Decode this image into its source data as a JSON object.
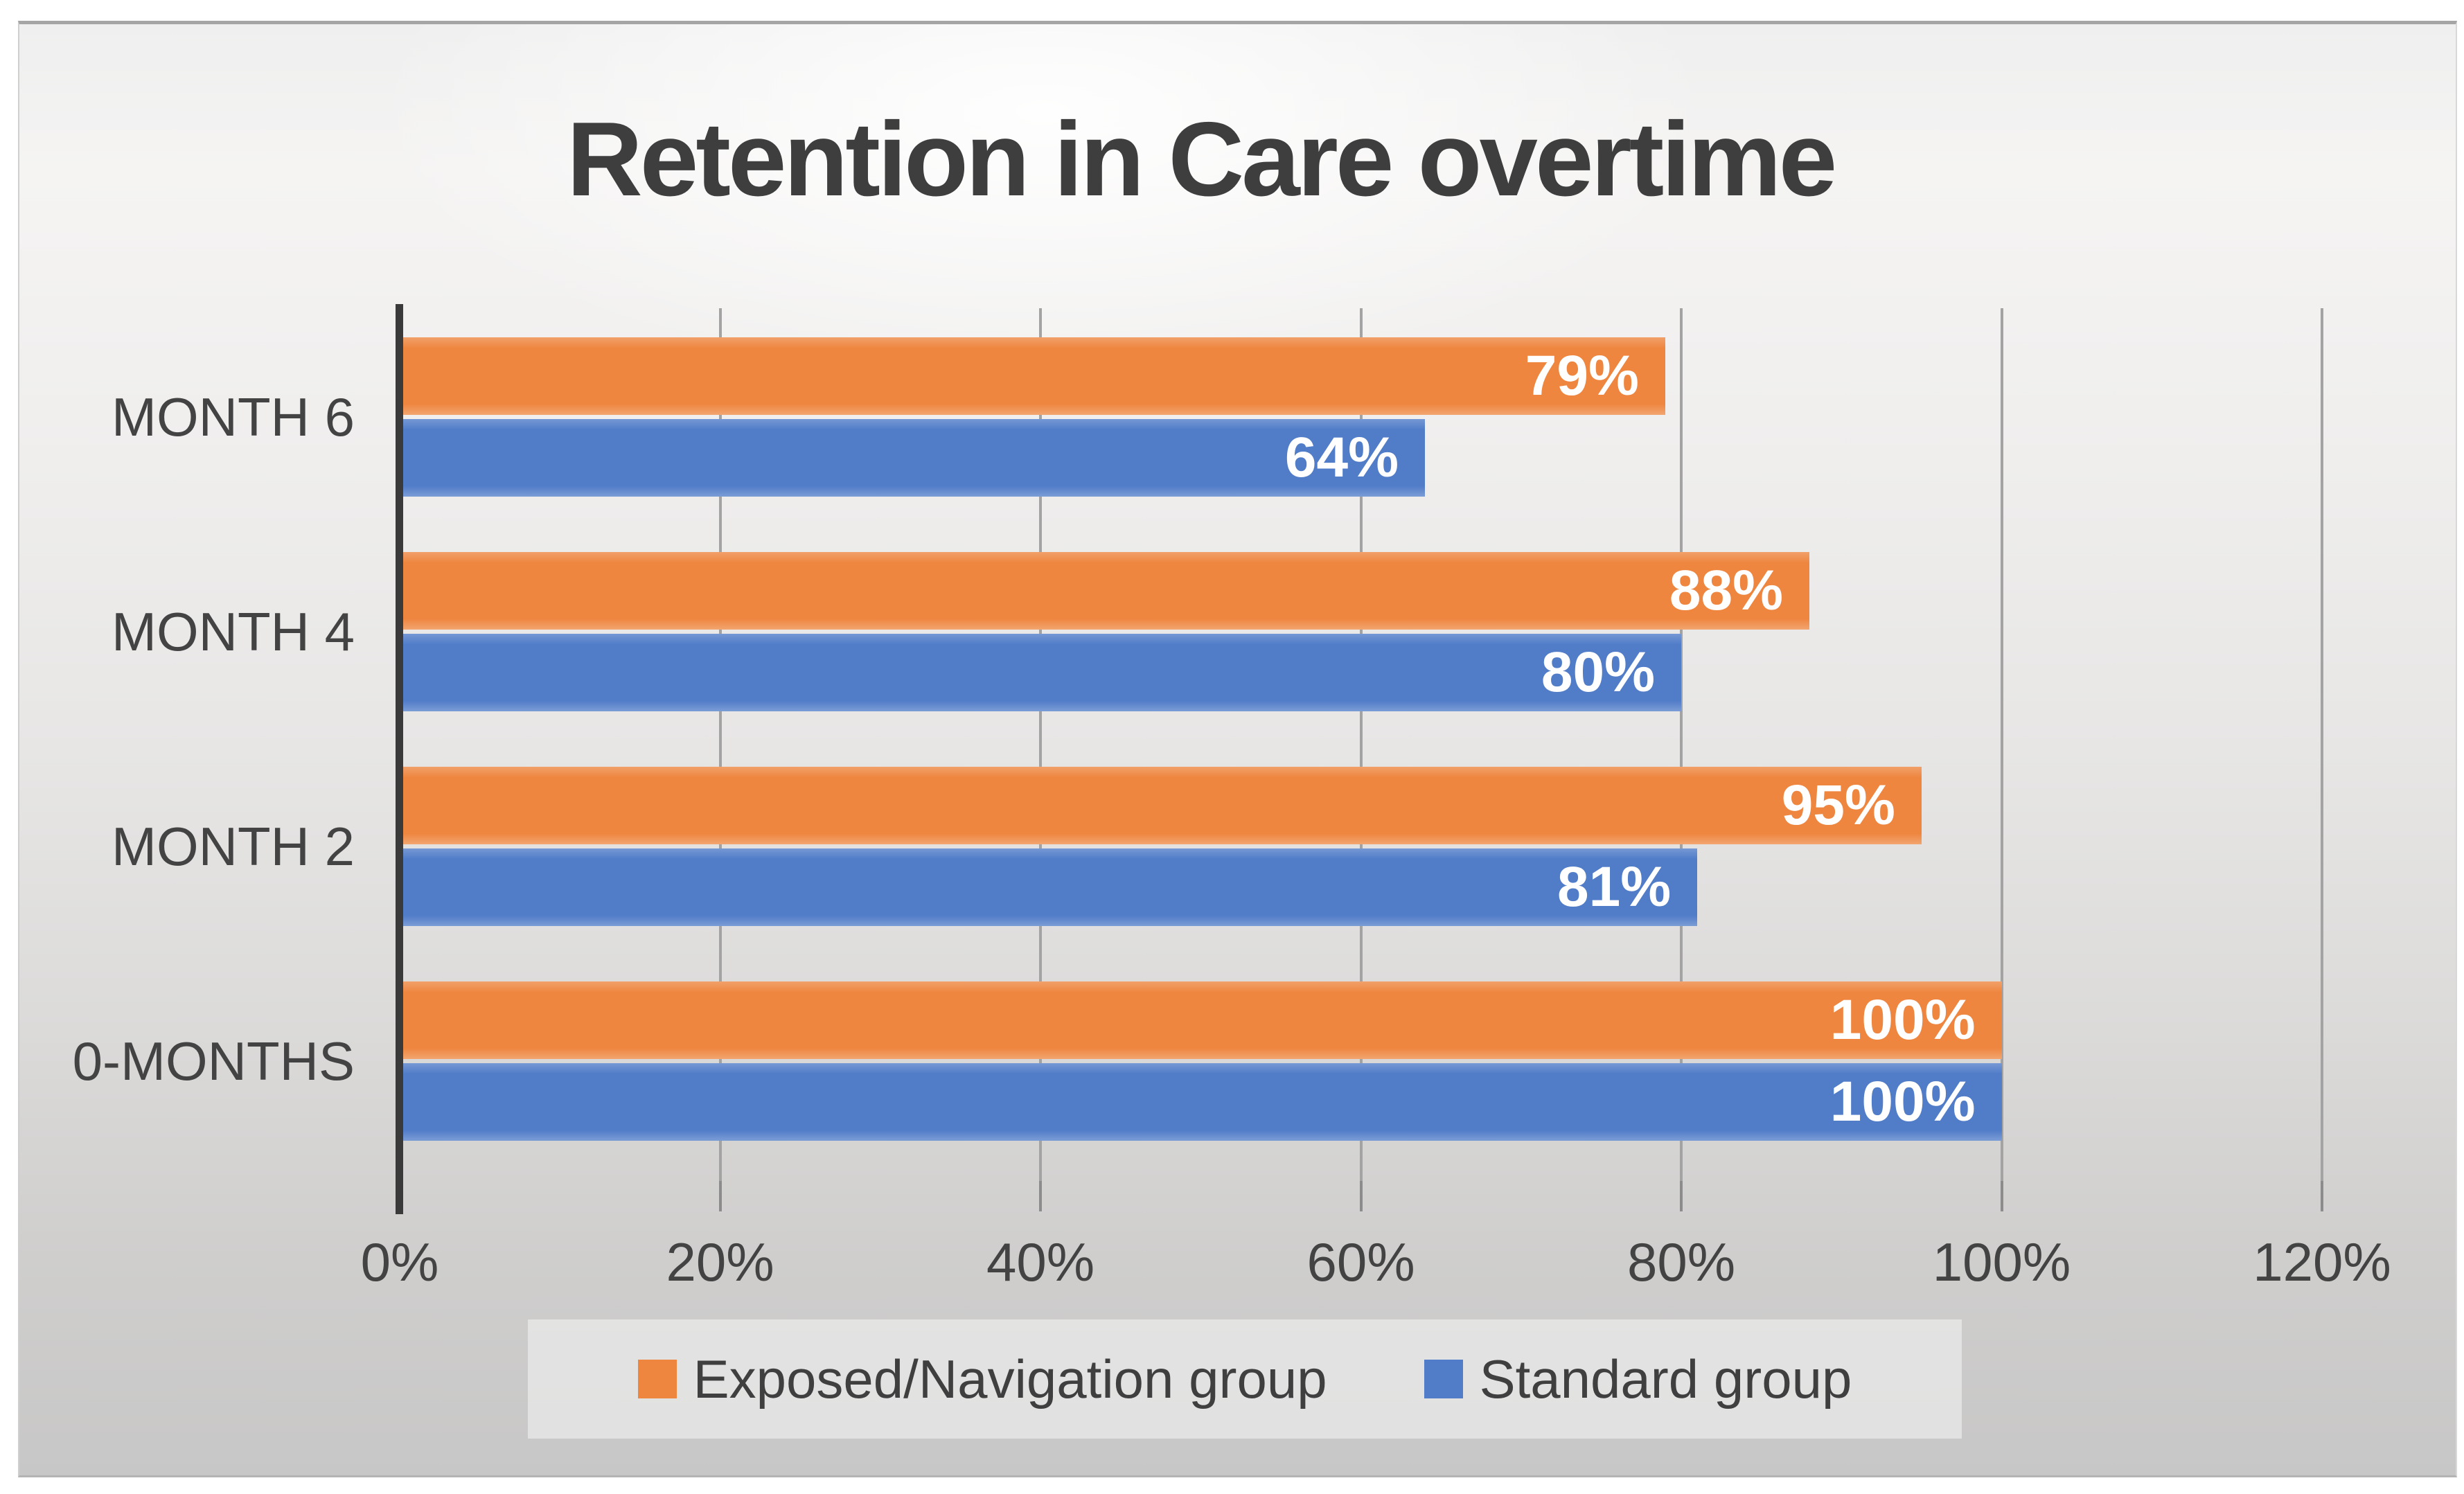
{
  "title": {
    "text": "Retention in Care overtime",
    "color": "#3e3e3e"
  },
  "chart_data": {
    "type": "bar",
    "orientation": "horizontal",
    "title": "Retention in Care overtime",
    "categories_top_to_bottom": [
      "MONTH 6",
      "MONTH 4",
      "MONTH 2",
      "0-MONTHS"
    ],
    "series": [
      {
        "name": "Exposed/Navigation group",
        "color": "#EE8640",
        "values_pct": [
          79,
          88,
          95,
          100
        ],
        "data_labels": [
          "79%",
          "88%",
          "95%",
          "100%"
        ]
      },
      {
        "name": "Standard group",
        "color": "#507CC8",
        "values_pct": [
          64,
          80,
          81,
          100
        ],
        "data_labels": [
          "64%",
          "80%",
          "81%",
          "100%"
        ]
      }
    ],
    "x_axis": {
      "min": 0,
      "max": 120,
      "tick_step": 20,
      "tick_labels": [
        "0%",
        "20%",
        "40%",
        "60%",
        "80%",
        "100%",
        "120%"
      ],
      "grid": true
    },
    "legend": {
      "position": "bottom",
      "entries": [
        "Exposed/Navigation group",
        "Standard group"
      ]
    },
    "style": {
      "data_label_color": "#ffffff",
      "axis_text_color": "#434343",
      "gridline_color": "#a3a3a3",
      "tickmark_color": "#8c8c8c",
      "axis_line_color": "#3a3a3a"
    }
  }
}
